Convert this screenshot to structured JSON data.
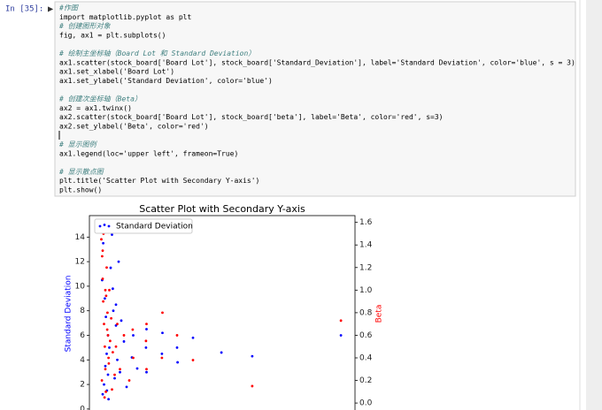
{
  "prompt": "In [35]:",
  "code_blocks": [
    [
      "#作图",
      "import matplotlib.pyplot as plt",
      "# 创建图形对象",
      "fig, ax1 = plt.subplots()"
    ],
    [
      "# 绘制主坐标轴（Board Lot 和 Standard Deviation）",
      "ax1.scatter(stock_board['Board Lot'], stock_board['Standard_Deviation'], label='Standard Deviation', color='blue', s = 3)",
      "ax1.set_xlabel('Board Lot')",
      "ax1.set_ylabel('Standard Deviation', color='blue')"
    ],
    [
      "# 创建次坐标轴（Beta）",
      "ax2 = ax1.twinx()",
      "ax2.scatter(stock_board['Board Lot'], stock_board['beta'], label='Beta', color='red', s=3)",
      "ax2.set_ylabel('Beta', color='red')"
    ],
    [
      "# 显示图例",
      "ax1.legend(loc='upper left', frameon=True)"
    ],
    [
      "# 显示散点图",
      "plt.title('Scatter Plot with Secondary Y-axis')",
      "plt.show()"
    ]
  ],
  "chart_data": {
    "type": "scatter",
    "title": "Scatter Plot with Secondary Y-axis",
    "ylabel": "Standard Deviation",
    "y2label": "Beta",
    "xlim": [
      0,
      1000
    ],
    "ylim": [
      -0.8,
      15.75
    ],
    "yticks": [
      0,
      2,
      4,
      6,
      8,
      10,
      12,
      14
    ],
    "y2lim": [
      -0.14,
      1.66
    ],
    "y2ticks": [
      {
        "value": 0,
        "label": "0.0"
      },
      {
        "value": 0.2,
        "label": "0.2"
      },
      {
        "value": 0.4,
        "label": "0.4"
      },
      {
        "value": 0.6,
        "label": "0.6"
      },
      {
        "value": 0.8,
        "label": "0.8"
      },
      {
        "value": 1,
        "label": "1.0"
      },
      {
        "value": 1.2,
        "label": "1.2"
      },
      {
        "value": 1.4,
        "label": "1.4"
      },
      {
        "value": 1.6,
        "label": "1.6"
      }
    ],
    "legend": "upper left",
    "series": [
      {
        "name": "Standard Deviation",
        "color": "blue",
        "legend": true,
        "x": [
          50,
          55,
          60,
          65,
          70,
          48,
          52,
          58,
          62,
          75,
          80,
          85,
          90,
          95,
          100,
          105,
          110,
          115,
          120,
          130,
          140,
          160,
          165,
          180,
          213,
          215,
          215,
          273,
          275,
          330,
          332,
          390,
          497,
          613,
          947,
          70,
          88,
          66,
          72,
          100
        ],
        "values": [
          1.2,
          2.0,
          3.5,
          4.5,
          6.0,
          10.5,
          13.5,
          9.0,
          7.5,
          5.0,
          11.5,
          14.2,
          8.0,
          2.5,
          6.8,
          4.0,
          12.0,
          3.0,
          7.2,
          5.5,
          1.8,
          4.2,
          6.0,
          3.3,
          5.0,
          6.5,
          3.0,
          4.5,
          6.2,
          5.0,
          3.8,
          5.8,
          4.6,
          4.3,
          6.0,
          2.8,
          9.8,
          1.5,
          0.8,
          8.5
        ]
      },
      {
        "name": "Beta",
        "color": "red",
        "axis": "y2",
        "legend": false,
        "x": [
          45,
          48,
          50,
          52,
          55,
          58,
          60,
          62,
          65,
          68,
          70,
          72,
          75,
          47,
          53,
          57,
          63,
          67,
          73,
          78,
          82,
          88,
          95,
          100,
          105,
          115,
          130,
          150,
          163,
          165,
          213,
          215,
          215,
          273,
          275,
          330,
          390,
          613,
          947,
          85,
          50,
          60
        ],
        "values": [
          1.45,
          1.3,
          1.1,
          0.9,
          0.7,
          0.5,
          0.3,
          0.1,
          1.2,
          0.8,
          0.6,
          0.4,
          1.0,
          0.2,
          1.5,
          0.05,
          0.95,
          0.65,
          0.35,
          0.55,
          0.75,
          0.45,
          0.25,
          0.5,
          0.7,
          0.3,
          0.6,
          0.2,
          0.65,
          0.4,
          0.55,
          0.7,
          0.3,
          0.4,
          0.8,
          0.6,
          0.38,
          0.15,
          0.73,
          0.12,
          1.35,
          1.0
        ]
      }
    ]
  }
}
